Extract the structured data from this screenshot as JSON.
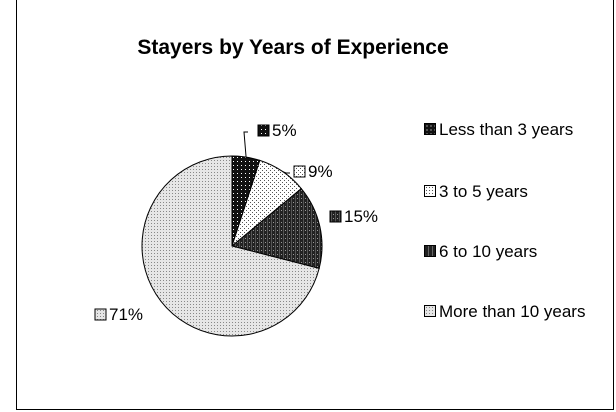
{
  "chart_data": {
    "type": "pie",
    "title": "Stayers by Years of Experience",
    "categories": [
      "Less than 3 years",
      "3 to 5 years",
      "6 to 10 years",
      "More than 10 years"
    ],
    "values": [
      5,
      9,
      15,
      71
    ],
    "data_labels": [
      "5%",
      "9%",
      "15%",
      "71%"
    ],
    "legend_position": "right",
    "patterns": [
      "dark-dots",
      "light-dots",
      "dark-vertical",
      "light-fine-dots"
    ]
  }
}
